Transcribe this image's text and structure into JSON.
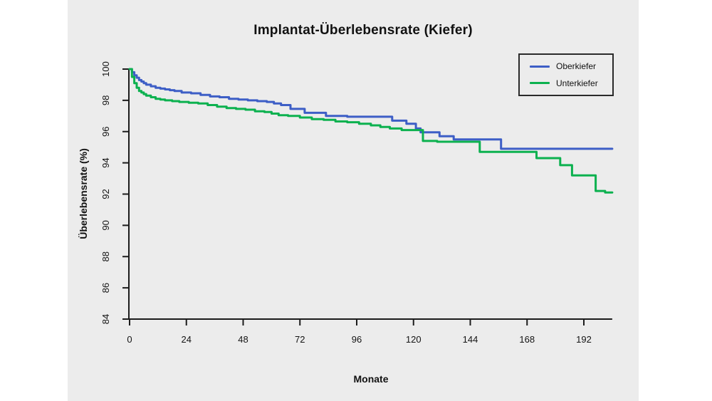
{
  "page": {
    "background": "#ffffff",
    "panel_background": "#ececec",
    "axis_color": "#1c1c1c"
  },
  "chart_data": {
    "type": "line",
    "subtype": "kaplan-meier-step",
    "title": "Implantat-Überlebensrate (Kiefer)",
    "xlabel": "Monate",
    "ylabel": "Überlebensrate (%)",
    "xlim": [
      0,
      204
    ],
    "ylim": [
      84,
      100
    ],
    "x_ticks": [
      0,
      24,
      48,
      72,
      96,
      120,
      144,
      168,
      192
    ],
    "y_ticks": [
      84,
      86,
      88,
      90,
      92,
      94,
      96,
      98,
      100
    ],
    "grid": "off",
    "legend_position": "top-right",
    "series": [
      {
        "name": "Oberkiefer",
        "color": "#3d5ec6",
        "points": [
          [
            0,
            100
          ],
          [
            1,
            99.8
          ],
          [
            2,
            99.6
          ],
          [
            3,
            99.45
          ],
          [
            4,
            99.3
          ],
          [
            5,
            99.2
          ],
          [
            6,
            99.1
          ],
          [
            7,
            99.0
          ],
          [
            9,
            98.9
          ],
          [
            11,
            98.8
          ],
          [
            13,
            98.75
          ],
          [
            15,
            98.7
          ],
          [
            17,
            98.65
          ],
          [
            19,
            98.6
          ],
          [
            22,
            98.5
          ],
          [
            26,
            98.45
          ],
          [
            30,
            98.35
          ],
          [
            34,
            98.25
          ],
          [
            38,
            98.2
          ],
          [
            42,
            98.1
          ],
          [
            46,
            98.05
          ],
          [
            50,
            98.0
          ],
          [
            54,
            97.95
          ],
          [
            58,
            97.9
          ],
          [
            61,
            97.8
          ],
          [
            64,
            97.7
          ],
          [
            68,
            97.45
          ],
          [
            74,
            97.2
          ],
          [
            83,
            97.0
          ],
          [
            92,
            96.95
          ],
          [
            111,
            96.7
          ],
          [
            117,
            96.5
          ],
          [
            121,
            96.2
          ],
          [
            123,
            95.95
          ],
          [
            131,
            95.7
          ],
          [
            137,
            95.5
          ],
          [
            157,
            94.9
          ],
          [
            204,
            94.9
          ]
        ]
      },
      {
        "name": "Unterkiefer",
        "color": "#0cb14f",
        "points": [
          [
            0,
            100
          ],
          [
            1,
            99.5
          ],
          [
            2,
            99.1
          ],
          [
            3,
            98.8
          ],
          [
            4,
            98.6
          ],
          [
            5,
            98.5
          ],
          [
            6,
            98.4
          ],
          [
            7,
            98.3
          ],
          [
            9,
            98.2
          ],
          [
            11,
            98.1
          ],
          [
            13,
            98.05
          ],
          [
            15,
            98.0
          ],
          [
            18,
            97.95
          ],
          [
            21,
            97.9
          ],
          [
            25,
            97.85
          ],
          [
            29,
            97.8
          ],
          [
            33,
            97.7
          ],
          [
            37,
            97.6
          ],
          [
            41,
            97.5
          ],
          [
            45,
            97.45
          ],
          [
            49,
            97.4
          ],
          [
            53,
            97.3
          ],
          [
            57,
            97.25
          ],
          [
            60,
            97.15
          ],
          [
            63,
            97.05
          ],
          [
            67,
            97.0
          ],
          [
            72,
            96.9
          ],
          [
            77,
            96.8
          ],
          [
            82,
            96.75
          ],
          [
            87,
            96.65
          ],
          [
            92,
            96.6
          ],
          [
            97,
            96.5
          ],
          [
            102,
            96.4
          ],
          [
            106,
            96.3
          ],
          [
            110,
            96.2
          ],
          [
            115,
            96.1
          ],
          [
            124,
            95.4
          ],
          [
            130,
            95.35
          ],
          [
            148,
            94.7
          ],
          [
            172,
            94.3
          ],
          [
            182,
            93.85
          ],
          [
            187,
            93.2
          ],
          [
            197,
            92.2
          ],
          [
            201,
            92.1
          ],
          [
            204,
            92.1
          ]
        ]
      }
    ]
  }
}
